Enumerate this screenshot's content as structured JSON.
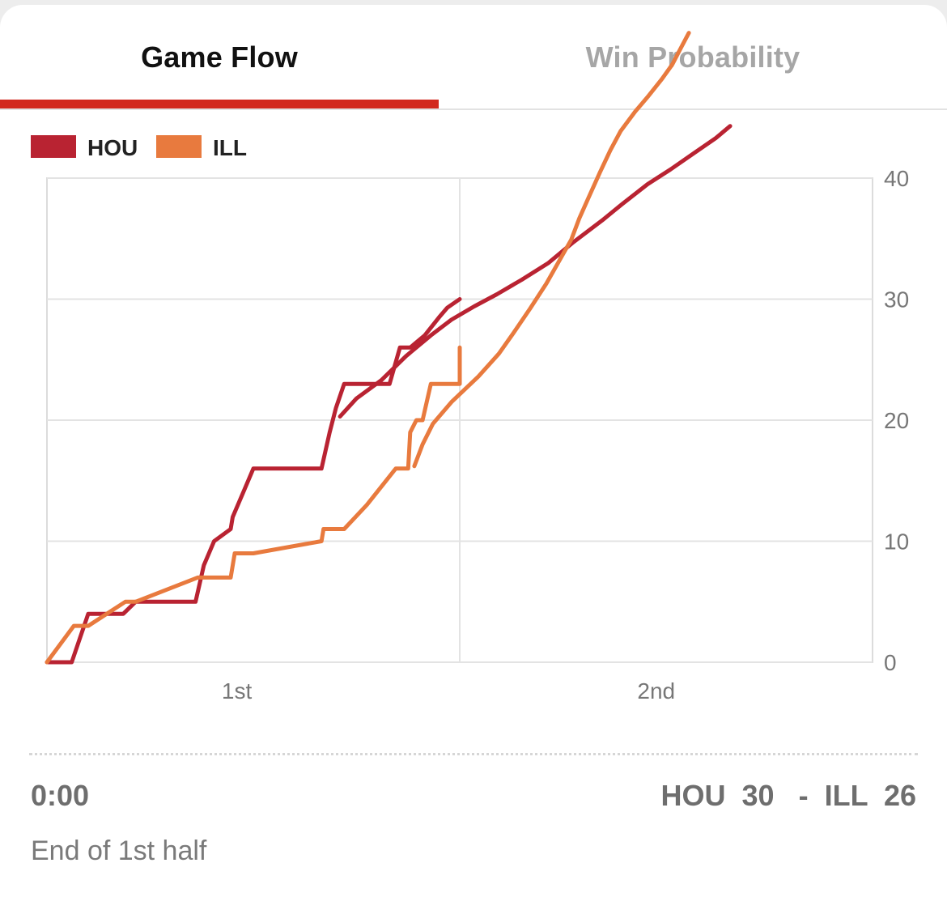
{
  "tabs": {
    "game_flow": "Game Flow",
    "win_probability": "Win Probability",
    "active": "game_flow"
  },
  "colors": {
    "accent": "#d2291e",
    "HOU": "#b92332",
    "ILL": "#e87a3e"
  },
  "chart_data": {
    "type": "line",
    "title": "",
    "xlabel": "",
    "ylabel": "",
    "x_tick_labels": [
      "1st",
      "2nd"
    ],
    "x_range": [
      0,
      40
    ],
    "y_ticks": [
      0,
      10,
      20,
      30,
      40
    ],
    "ylim": [
      0,
      40
    ],
    "y_axis_side": "right",
    "grid": true,
    "legend_position": "top-left",
    "series": [
      {
        "name": "HOU",
        "points": [
          [
            0,
            0
          ],
          [
            1.2,
            0
          ],
          [
            2,
            4
          ],
          [
            3.7,
            4
          ],
          [
            4.3,
            5
          ],
          [
            7.2,
            5
          ],
          [
            7.6,
            8
          ],
          [
            8.1,
            10
          ],
          [
            8.9,
            11
          ],
          [
            9,
            12
          ],
          [
            9.5,
            14
          ],
          [
            10,
            16
          ],
          [
            13.3,
            16
          ],
          [
            13.7,
            19
          ],
          [
            14,
            21
          ],
          [
            14.4,
            23
          ],
          [
            16.6,
            23
          ],
          [
            17.1,
            26
          ],
          [
            17.6,
            26
          ],
          [
            18.3,
            27
          ],
          [
            19,
            28.5
          ],
          [
            19.4,
            29.3
          ],
          [
            20,
            30
          ]
        ]
      },
      {
        "name": "ILL",
        "points": [
          [
            0,
            0
          ],
          [
            1.3,
            3
          ],
          [
            2,
            3
          ],
          [
            3.8,
            5
          ],
          [
            4.3,
            5
          ],
          [
            7.3,
            7
          ],
          [
            8.9,
            7
          ],
          [
            9.1,
            9
          ],
          [
            10,
            9
          ],
          [
            13.3,
            10
          ],
          [
            13.4,
            11
          ],
          [
            14.4,
            11
          ],
          [
            15.5,
            13
          ],
          [
            16.9,
            16
          ],
          [
            17.5,
            16
          ],
          [
            17.6,
            19
          ],
          [
            17.9,
            20
          ],
          [
            18.2,
            20
          ],
          [
            18.6,
            23
          ],
          [
            20,
            23
          ],
          [
            20,
            26
          ]
        ]
      }
    ],
    "overflow_lines": [
      {
        "name": "HOU",
        "points": [
          [
            14.2,
            20.3
          ],
          [
            15,
            21.8
          ],
          [
            16.2,
            23.3
          ],
          [
            17.4,
            25.3
          ],
          [
            18.6,
            27
          ],
          [
            19.6,
            28.3
          ],
          [
            20.7,
            29.4
          ],
          [
            21.8,
            30.4
          ],
          [
            23,
            31.6
          ],
          [
            24.3,
            33
          ],
          [
            25.5,
            34.7
          ],
          [
            26.9,
            36.5
          ],
          [
            27.9,
            37.9
          ],
          [
            29.1,
            39.5
          ],
          [
            30.2,
            40.7
          ],
          [
            31.3,
            42
          ],
          [
            32.4,
            43.3
          ],
          [
            33.1,
            44.3
          ]
        ]
      },
      {
        "name": "ILL",
        "points": [
          [
            17.8,
            16.2
          ],
          [
            18.2,
            18
          ],
          [
            18.7,
            19.7
          ],
          [
            19.6,
            21.5
          ],
          [
            20.9,
            23.6
          ],
          [
            21.9,
            25.5
          ],
          [
            22.6,
            27.2
          ],
          [
            23.4,
            29.2
          ],
          [
            24.2,
            31.3
          ],
          [
            24.9,
            33.4
          ],
          [
            25.4,
            34.9
          ],
          [
            25.8,
            36.7
          ],
          [
            26.3,
            38.6
          ],
          [
            26.8,
            40.5
          ],
          [
            27.3,
            42.3
          ],
          [
            27.8,
            43.9
          ],
          [
            28.5,
            45.5
          ],
          [
            29.1,
            46.7
          ],
          [
            29.8,
            48.2
          ],
          [
            30.3,
            49.4
          ],
          [
            30.7,
            50.7
          ],
          [
            31.1,
            52
          ]
        ]
      }
    ]
  },
  "footer": {
    "clock": "0:00",
    "home_abbr": "HOU",
    "home_score": "30",
    "separator": "-",
    "away_abbr": "ILL",
    "away_score": "26",
    "status": "End of 1st half"
  }
}
